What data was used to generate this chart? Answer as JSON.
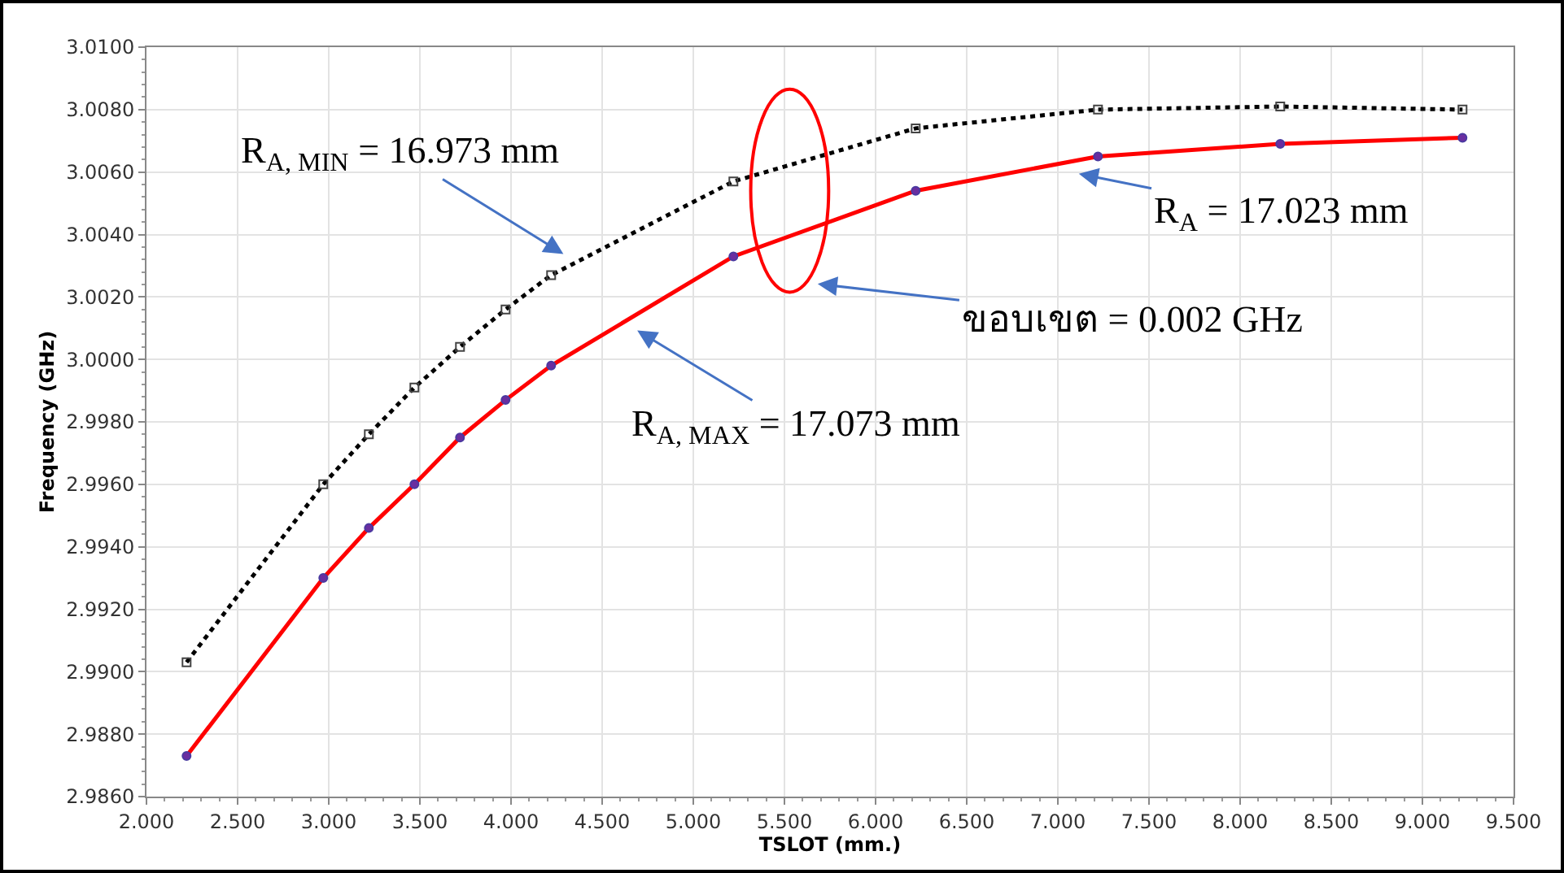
{
  "chart_data": {
    "type": "line",
    "xlabel": "TSLOT (mm.)",
    "ylabel": "Frequency (GHz)",
    "x": [
      2.22,
      2.97,
      3.22,
      3.47,
      3.72,
      3.97,
      4.22,
      5.22,
      6.22,
      7.22,
      8.22,
      9.22
    ],
    "series": [
      {
        "color": "#000000",
        "line_style": "dotted",
        "marker": "square",
        "values": [
          2.9903,
          2.996,
          2.9976,
          2.9991,
          3.0004,
          3.0016,
          3.0027,
          3.0057,
          3.0074,
          3.008,
          3.0081,
          3.008
        ]
      },
      {
        "color": "#ff0000",
        "line_style": "solid",
        "marker": "circle",
        "values": [
          2.9873,
          2.993,
          2.9946,
          2.996,
          2.9975,
          2.9987,
          2.9998,
          3.0033,
          3.0054,
          3.0065,
          3.0069,
          3.0071
        ]
      }
    ],
    "xlim": [
      2,
      9.5
    ],
    "xticks": [
      {
        "value": 2,
        "label": "2.000"
      },
      {
        "value": 2.5,
        "label": "2.500"
      },
      {
        "value": 3,
        "label": "3.000"
      },
      {
        "value": 3.5,
        "label": "3.500"
      },
      {
        "value": 4,
        "label": "4.000"
      },
      {
        "value": 4.5,
        "label": "4.500"
      },
      {
        "value": 5,
        "label": "5.000"
      },
      {
        "value": 5.5,
        "label": "5.500"
      },
      {
        "value": 6,
        "label": "6.000"
      },
      {
        "value": 6.5,
        "label": "6.500"
      },
      {
        "value": 7,
        "label": "7.000"
      },
      {
        "value": 7.5,
        "label": "7.500"
      },
      {
        "value": 8,
        "label": "8.000"
      },
      {
        "value": 8.5,
        "label": "8.500"
      },
      {
        "value": 9,
        "label": "9.000"
      },
      {
        "value": 9.5,
        "label": "9.500"
      }
    ],
    "ylim": [
      2.986,
      3.01
    ],
    "yticks": [
      {
        "value": 2.986,
        "label": "2.9860"
      },
      {
        "value": 2.988,
        "label": "2.9880"
      },
      {
        "value": 2.99,
        "label": "2.9900"
      },
      {
        "value": 2.992,
        "label": "2.9920"
      },
      {
        "value": 2.994,
        "label": "2.9940"
      },
      {
        "value": 2.996,
        "label": "2.9960"
      },
      {
        "value": 2.998,
        "label": "2.9980"
      },
      {
        "value": 3,
        "label": "3.0000"
      },
      {
        "value": 3.002,
        "label": "3.0020"
      },
      {
        "value": 3.004,
        "label": "3.0040"
      },
      {
        "value": 3.006,
        "label": "3.0060"
      },
      {
        "value": 3.008,
        "label": "3.0080"
      },
      {
        "value": 3.01,
        "label": "3.0100"
      }
    ],
    "grid": true,
    "annotations": [
      "R$_{A, MIN}$ = 16.973 mm",
      "R$_{A}$ = 17.023 mm",
      "ขอบเขต = 0.002 GHz",
      "R$_{A, MAX}$ = 17.073 mm"
    ]
  }
}
